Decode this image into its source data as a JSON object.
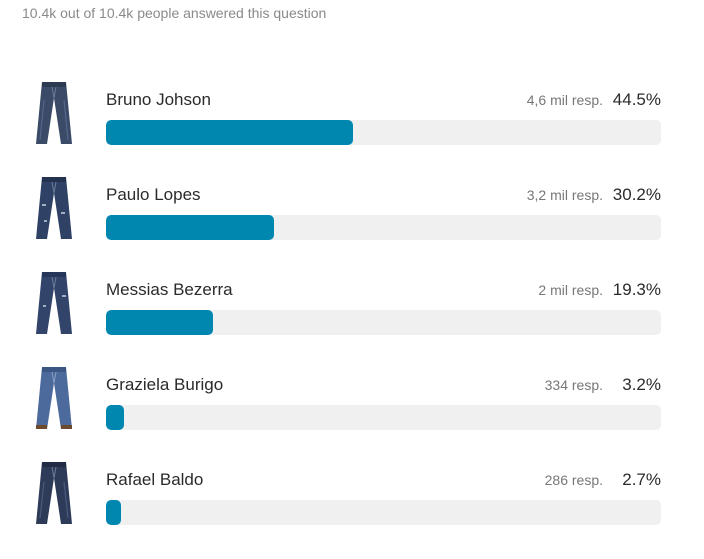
{
  "summary": "10.4k out of 10.4k people answered this question",
  "colors": {
    "bar_fill": "#0087b0",
    "bar_track": "#f0f0f0"
  },
  "options": [
    {
      "label": "Bruno Johson",
      "responses": "4,6 mil resp.",
      "percent_text": "44.5%",
      "percent": 44.5,
      "image": "jeans-icon"
    },
    {
      "label": "Paulo Lopes",
      "responses": "3,2 mil resp.",
      "percent_text": "30.2%",
      "percent": 30.2,
      "image": "jeans-icon"
    },
    {
      "label": "Messias Bezerra",
      "responses": "2 mil resp.",
      "percent_text": "19.3%",
      "percent": 19.3,
      "image": "jeans-icon"
    },
    {
      "label": "Graziela Burigo",
      "responses": "334 resp.",
      "percent_text": "3.2%",
      "percent": 3.2,
      "image": "jeans-icon"
    },
    {
      "label": "Rafael Baldo",
      "responses": "286 resp.",
      "percent_text": "2.7%",
      "percent": 2.7,
      "image": "jeans-icon"
    }
  ]
}
